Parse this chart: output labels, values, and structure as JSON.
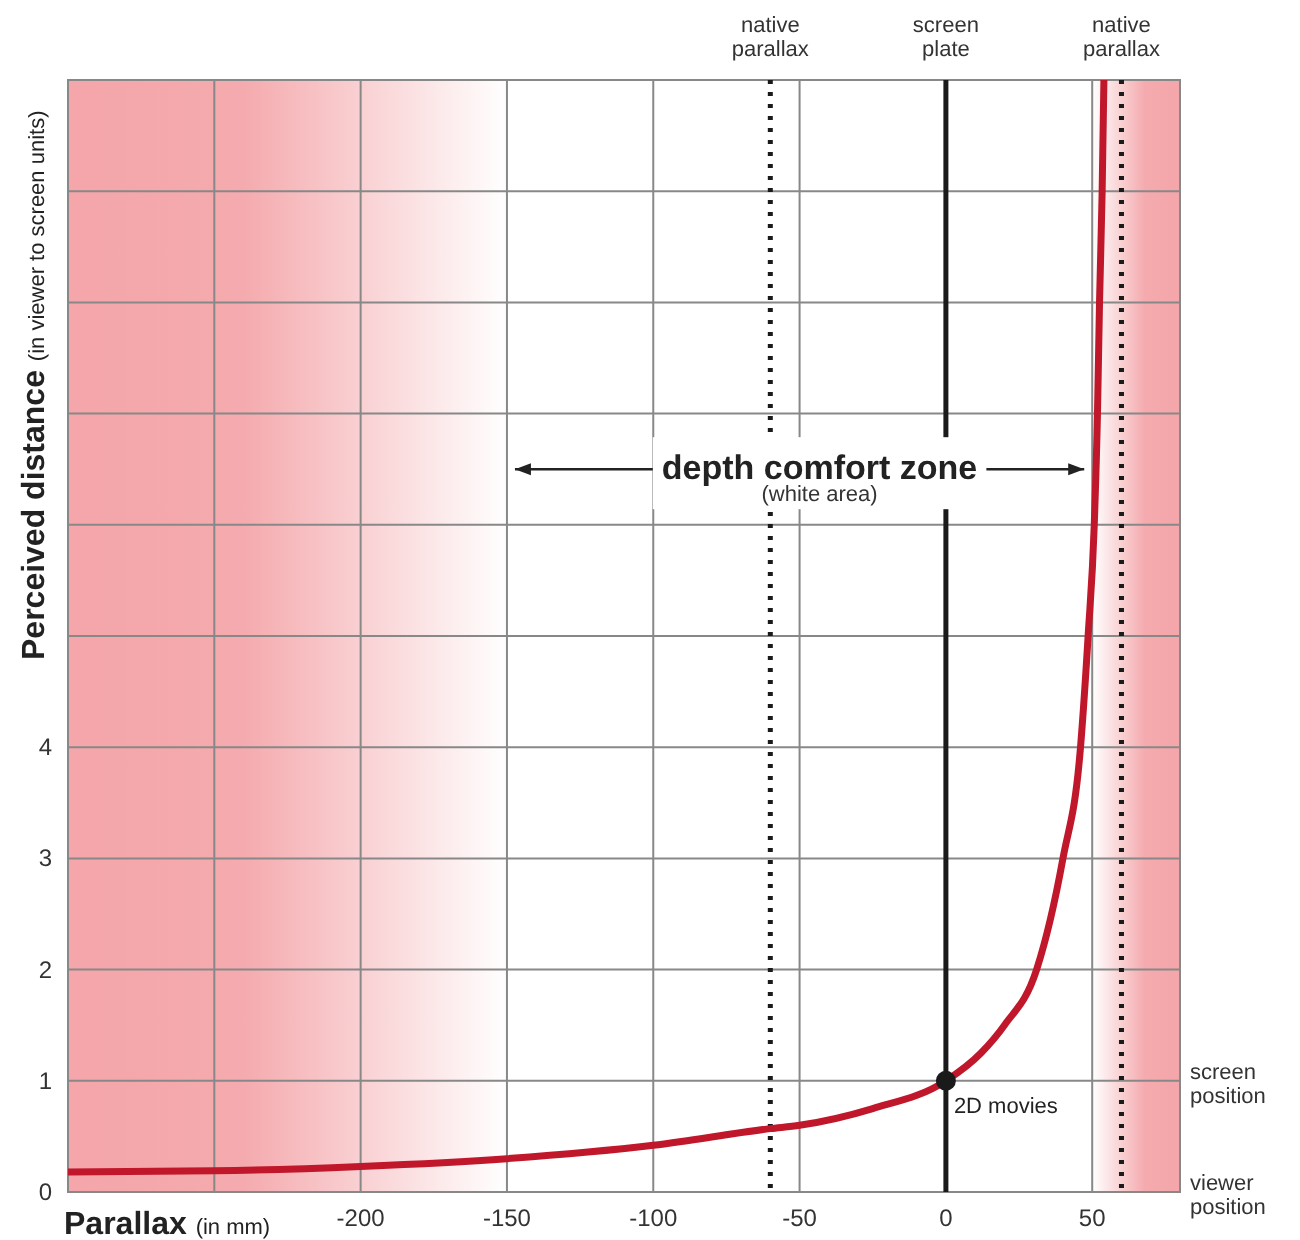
{
  "chart_data": {
    "type": "line",
    "xlabel": "Parallax (in mm)",
    "ylabel": "Perceived distance (in viewer to screen units)",
    "x": [
      -300,
      -250,
      -200,
      -150,
      -100,
      -60,
      -50,
      -25,
      0,
      12,
      20,
      31,
      40,
      46,
      48.6,
      50.7,
      51.8,
      52.5,
      53.4,
      54
    ],
    "series": [
      {
        "color": "#c0172b",
        "values": [
          0.18,
          0.19,
          0.23,
          0.3,
          0.42,
          0.57,
          0.6,
          0.75,
          1,
          1.25,
          1.5,
          2,
          3,
          4,
          5,
          6,
          7,
          8,
          9,
          10
        ]
      },
      {
        "type": "scatter",
        "color": "#1a1a1a",
        "marker": "circle",
        "x": [
          0
        ],
        "values": [
          1
        ]
      }
    ],
    "xlim": [
      -300,
      80
    ],
    "ylim": [
      0,
      10
    ],
    "xticks": [
      {
        "value": -300,
        "label": null
      },
      {
        "value": -250,
        "label": null
      },
      -200,
      -150,
      -100,
      -50,
      0,
      50
    ],
    "yticks": [
      0,
      1,
      2,
      3,
      4,
      {
        "value": 5,
        "label": null
      },
      {
        "value": 6,
        "label": null
      },
      {
        "value": 7,
        "label": null
      },
      {
        "value": 8,
        "label": null
      },
      {
        "value": 9,
        "label": null
      },
      {
        "value": 10,
        "label": null
      }
    ],
    "grid": true,
    "ref_lines": [
      {
        "axis": "x",
        "value": -60,
        "label": "native parallax",
        "color": "#1a1a1a",
        "line_style": "dotted"
      },
      {
        "axis": "x",
        "value": 0,
        "label": "screen plate",
        "color": "#1a1a1a",
        "line_style": "solid"
      },
      {
        "axis": "x",
        "value": 60,
        "label": "native parallax",
        "color": "#1a1a1a",
        "line_style": "dotted"
      }
    ],
    "bands": [
      {
        "axis": "x",
        "from": -300,
        "to": -150,
        "color": "#f4a6aa"
      },
      {
        "axis": "x",
        "from": 50,
        "to": 80,
        "color": "#f4a6aa"
      }
    ],
    "annotations": [
      {
        "text": "depth comfort zone",
        "x": 50,
        "y": 6.5
      },
      "(white area)",
      {
        "text": "2D movies",
        "x": 0,
        "y": 1
      },
      {
        "text": "screen position",
        "x": 80,
        "y": 1
      },
      {
        "text": "viewer position",
        "x": 80,
        "y": 0
      }
    ]
  }
}
